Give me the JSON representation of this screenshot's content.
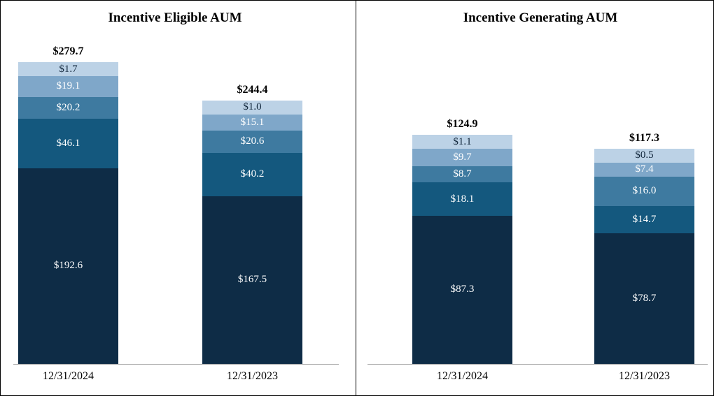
{
  "figure": {
    "background": "#ffffff",
    "border_color": "#000000",
    "axis_color": "#9a9a9a"
  },
  "chart_data": [
    {
      "type": "bar",
      "stacked": true,
      "title": "Incentive Eligible AUM",
      "categories": [
        "12/31/2024",
        "12/31/2023"
      ],
      "totals": [
        "$279.7",
        "$244.4"
      ],
      "legend": "none",
      "grid": false,
      "series": [
        {
          "color": "#0e2c46",
          "label_color": "#ffffff",
          "values": [
            192.6,
            167.5
          ],
          "labels": [
            "$192.6",
            "$167.5"
          ]
        },
        {
          "color": "#14587e",
          "label_color": "#ffffff",
          "values": [
            46.1,
            40.2
          ],
          "labels": [
            "$46.1",
            "$40.2"
          ]
        },
        {
          "color": "#3e7aa0",
          "label_color": "#ffffff",
          "values": [
            20.2,
            20.6
          ],
          "labels": [
            "$20.2",
            "$20.6"
          ]
        },
        {
          "color": "#7fa7c9",
          "label_color": "#ffffff",
          "values": [
            19.1,
            15.1
          ],
          "labels": [
            "$19.1",
            "$15.1"
          ]
        },
        {
          "color": "#bcd2e6",
          "label_color": "#10253a",
          "values": [
            1.7,
            1.0
          ],
          "labels": [
            "$1.7",
            "$1.0"
          ]
        }
      ]
    },
    {
      "type": "bar",
      "stacked": true,
      "title": "Incentive Generating AUM",
      "categories": [
        "12/31/2024",
        "12/31/2023"
      ],
      "totals": [
        "$124.9",
        "$117.3"
      ],
      "legend": "none",
      "grid": false,
      "series": [
        {
          "color": "#0e2c46",
          "label_color": "#ffffff",
          "values": [
            87.3,
            78.7
          ],
          "labels": [
            "$87.3",
            "$78.7"
          ]
        },
        {
          "color": "#14587e",
          "label_color": "#ffffff",
          "values": [
            18.1,
            14.7
          ],
          "labels": [
            "$18.1",
            "$14.7"
          ]
        },
        {
          "color": "#3e7aa0",
          "label_color": "#ffffff",
          "values": [
            8.7,
            16.0
          ],
          "labels": [
            "$8.7",
            "$16.0"
          ]
        },
        {
          "color": "#7fa7c9",
          "label_color": "#ffffff",
          "values": [
            9.7,
            7.4
          ],
          "labels": [
            "$9.7",
            "$7.4"
          ]
        },
        {
          "color": "#bcd2e6",
          "label_color": "#10253a",
          "values": [
            1.1,
            0.5
          ],
          "labels": [
            "$1.1",
            "$0.5"
          ]
        }
      ]
    }
  ]
}
